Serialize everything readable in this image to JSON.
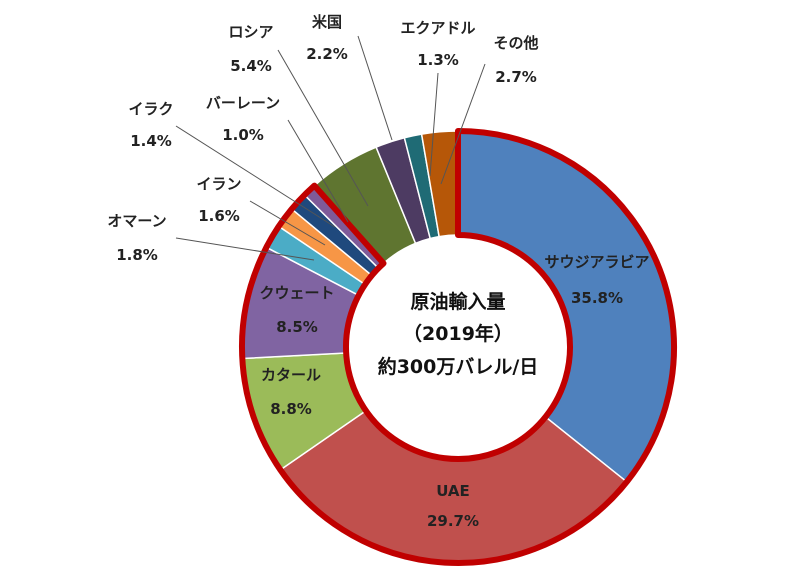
{
  "chart_data": {
    "type": "pie",
    "variant": "donut",
    "center_text": [
      "原油輸入量",
      "（2019年）",
      "約300万バレル/日"
    ],
    "legend": "none",
    "slices": [
      {
        "name": "サウジアラビア",
        "value": 35.8,
        "label": "35.8%",
        "color": "#4F81BD"
      },
      {
        "name": "UAE",
        "value": 29.7,
        "label": "29.7%",
        "color": "#C0504D"
      },
      {
        "name": "カタール",
        "value": 8.8,
        "label": "8.8%",
        "color": "#9BBB59"
      },
      {
        "name": "クウェート",
        "value": 8.5,
        "label": "8.5%",
        "color": "#8064A2"
      },
      {
        "name": "オマーン",
        "value": 1.8,
        "label": "1.8%",
        "color": "#4BACC6"
      },
      {
        "name": "イラン",
        "value": 1.6,
        "label": "1.6%",
        "color": "#F79646"
      },
      {
        "name": "イラク",
        "value": 1.4,
        "label": "1.4%",
        "color": "#1F497D"
      },
      {
        "name": "バーレーン",
        "value": 1.0,
        "label": "1.0%",
        "color": "#7F5A99"
      },
      {
        "name": "ロシア",
        "value": 5.4,
        "label": "5.4%",
        "color": "#5F7530"
      },
      {
        "name": "米国",
        "value": 2.2,
        "label": "2.2%",
        "color": "#4D3B62"
      },
      {
        "name": "エクアドル",
        "value": 1.3,
        "label": "1.3%",
        "color": "#1F6B75"
      },
      {
        "name": "その他",
        "value": 2.7,
        "label": "2.7%",
        "color": "#B65708"
      }
    ],
    "highlight_group": [
      "サウジアラビア",
      "UAE",
      "カタール",
      "クウェート",
      "オマーン",
      "イラン",
      "イラク",
      "バーレーン"
    ],
    "highlight_color": "#C00000"
  }
}
